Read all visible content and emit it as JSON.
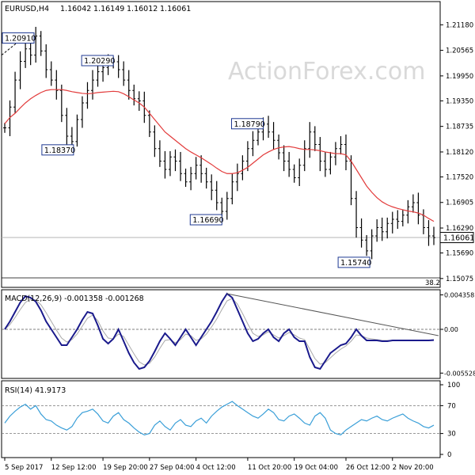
{
  "chart_data": {
    "type": "candlestick",
    "header": {
      "symbol_timeframe": "EURUSD,H4",
      "ohlc": [
        "1.16042",
        "1.16149",
        "1.16012",
        "1.16061"
      ]
    },
    "watermark": "ActionForex.com",
    "price_panel": {
      "ylim": [
        1.149,
        1.217
      ],
      "ticks": [
        "1.21180",
        "1.20565",
        "1.19950",
        "1.19350",
        "1.18735",
        "1.18120",
        "1.17520",
        "1.16905",
        "1.16290",
        "1.15690",
        "1.15075"
      ],
      "current_price": "1.16061",
      "current_price_value": 1.16061,
      "fib_label": "38.2",
      "annotations": [
        {
          "text": "1.20910",
          "value": 1.2091,
          "x_index": 6
        },
        {
          "text": "1.20290",
          "value": 1.2029,
          "x_index": 21
        },
        {
          "text": "1.18370",
          "value": 1.1837,
          "x_index": 13
        },
        {
          "text": "1.16690",
          "value": 1.1669,
          "x_index": 42
        },
        {
          "text": "1.18790",
          "value": 1.1879,
          "x_index": 50
        },
        {
          "text": "1.15740",
          "value": 1.1574,
          "x_index": 70
        }
      ],
      "close": [
        1.187,
        1.192,
        1.1985,
        1.203,
        1.206,
        1.2045,
        1.2091,
        1.2055,
        1.201,
        1.1985,
        1.196,
        1.19,
        1.185,
        1.1837,
        1.189,
        1.193,
        1.196,
        1.1985,
        1.2005,
        1.2015,
        1.2025,
        1.2029,
        1.201,
        1.1985,
        1.196,
        1.194,
        1.1935,
        1.19,
        1.186,
        1.182,
        1.179,
        1.177,
        1.18,
        1.179,
        1.176,
        1.174,
        1.176,
        1.178,
        1.176,
        1.174,
        1.172,
        1.169,
        1.1669,
        1.17,
        1.174,
        1.176,
        1.179,
        1.182,
        1.184,
        1.186,
        1.1879,
        1.186,
        1.184,
        1.181,
        1.179,
        1.177,
        1.175,
        1.178,
        1.182,
        1.186,
        1.183,
        1.179,
        1.177,
        1.18,
        1.182,
        1.183,
        1.179,
        1.17,
        1.163,
        1.16,
        1.1574,
        1.161,
        1.163,
        1.162,
        1.164,
        1.165,
        1.1645,
        1.166,
        1.168,
        1.169,
        1.166,
        1.163,
        1.161,
        1.1606
      ],
      "ma": [
        1.188,
        1.1895,
        1.1905,
        1.1918,
        1.193,
        1.194,
        1.1948,
        1.1955,
        1.196,
        1.1962,
        1.1962,
        1.1962,
        1.196,
        1.1957,
        1.1955,
        1.1953,
        1.1952,
        1.1953,
        1.1955,
        1.1956,
        1.1957,
        1.1958,
        1.1957,
        1.1952,
        1.1945,
        1.1937,
        1.193,
        1.192,
        1.1905,
        1.189,
        1.1875,
        1.186,
        1.185,
        1.184,
        1.183,
        1.182,
        1.1812,
        1.1805,
        1.1798,
        1.179,
        1.1782,
        1.1773,
        1.1765,
        1.176,
        1.176,
        1.1762,
        1.1768,
        1.1775,
        1.1785,
        1.1795,
        1.1805,
        1.1812,
        1.1818,
        1.1822,
        1.1824,
        1.1825,
        1.1823,
        1.182,
        1.1818,
        1.1818,
        1.1817,
        1.1815,
        1.1812,
        1.181,
        1.1808,
        1.1808,
        1.1805,
        1.179,
        1.177,
        1.175,
        1.173,
        1.1715,
        1.1702,
        1.1692,
        1.1685,
        1.168,
        1.1676,
        1.1673,
        1.167,
        1.1668,
        1.1665,
        1.166,
        1.1652,
        1.1645
      ]
    },
    "macd_panel": {
      "label": "MACD(12,26,9) -0.001358 -0.001268",
      "ylim": [
        -0.006,
        0.0048
      ],
      "ticks": [
        "0.004358",
        "0.00",
        "-0.005528"
      ],
      "macd": [
        0.0,
        0.001,
        0.0022,
        0.0034,
        0.0042,
        0.004,
        0.0035,
        0.0024,
        0.001,
        0.0,
        -0.001,
        -0.002,
        -0.002,
        -0.001,
        0.0,
        0.0012,
        0.0022,
        0.002,
        0.0005,
        -0.0012,
        -0.0018,
        -0.0012,
        0.0,
        -0.0015,
        -0.003,
        -0.0042,
        -0.005,
        -0.0048,
        -0.004,
        -0.0028,
        -0.0015,
        -0.0005,
        -0.0012,
        -0.002,
        -0.001,
        0.0,
        -0.001,
        -0.002,
        -0.001,
        0.0,
        0.001,
        0.0022,
        0.0035,
        0.0045,
        0.004,
        0.0025,
        0.001,
        -0.0005,
        -0.0015,
        -0.0012,
        -0.0005,
        0.0,
        -0.001,
        -0.0015,
        -0.0005,
        0.0,
        -0.001,
        -0.0015,
        -0.0015,
        -0.0035,
        -0.0048,
        -0.005,
        -0.004,
        -0.003,
        -0.0025,
        -0.002,
        -0.0018,
        -0.001,
        0.0,
        -0.0008,
        -0.0014,
        -0.0014,
        -0.0014,
        -0.0015,
        -0.0015,
        -0.0014,
        -0.0014,
        -0.0014,
        -0.0014,
        -0.0014,
        -0.0014,
        -0.0014,
        -0.0014,
        -0.00136
      ],
      "signal": [
        0.0,
        0.0006,
        0.0015,
        0.0025,
        0.0034,
        0.0038,
        0.0037,
        0.0031,
        0.0021,
        0.001,
        -0.0001,
        -0.0011,
        -0.0016,
        -0.0013,
        -0.0006,
        0.0004,
        0.0014,
        0.0018,
        0.0011,
        -0.0002,
        -0.0011,
        -0.0012,
        -0.0006,
        -0.0009,
        -0.002,
        -0.0031,
        -0.0041,
        -0.0045,
        -0.0043,
        -0.0035,
        -0.0024,
        -0.0014,
        -0.0013,
        -0.0017,
        -0.0013,
        -0.0006,
        -0.0008,
        -0.0014,
        -0.0012,
        -0.0006,
        0.0003,
        0.0013,
        0.0025,
        0.0036,
        0.0039,
        0.0032,
        0.002,
        0.0007,
        -0.0005,
        -0.0009,
        -0.0007,
        -0.0003,
        -0.0007,
        -0.0011,
        -0.0008,
        -0.0004,
        -0.0007,
        -0.0011,
        -0.0013,
        -0.0025,
        -0.0037,
        -0.0044,
        -0.0042,
        -0.0036,
        -0.003,
        -0.0025,
        -0.0021,
        -0.0015,
        -0.0007,
        -0.0008,
        -0.0011,
        -0.0012,
        -0.0013,
        -0.0014,
        -0.0014,
        -0.0014,
        -0.0014,
        -0.0014,
        -0.0014,
        -0.0014,
        -0.0014,
        -0.0014,
        -0.0014,
        -0.00127
      ],
      "trendline": [
        [
          43,
          0.0045
        ],
        [
          84,
          -0.0008
        ]
      ]
    },
    "rsi_panel": {
      "label": "RSI(14) 41.9173",
      "ylim": [
        0,
        100
      ],
      "ticks": [
        "100",
        "70",
        "30",
        "0"
      ],
      "levels": [
        70,
        30
      ],
      "values": [
        45,
        55,
        62,
        68,
        72,
        65,
        70,
        58,
        50,
        48,
        42,
        38,
        35,
        40,
        52,
        60,
        62,
        65,
        58,
        48,
        45,
        55,
        60,
        50,
        45,
        38,
        32,
        28,
        30,
        42,
        48,
        40,
        35,
        45,
        50,
        42,
        40,
        48,
        52,
        45,
        55,
        62,
        68,
        72,
        76,
        70,
        65,
        60,
        55,
        52,
        58,
        65,
        60,
        50,
        48,
        55,
        58,
        52,
        45,
        42,
        55,
        60,
        52,
        35,
        30,
        28,
        35,
        40,
        45,
        50,
        48,
        52,
        55,
        50,
        48,
        52,
        55,
        58,
        52,
        48,
        45,
        40,
        38,
        42
      ]
    },
    "x_axis": {
      "labels": [
        "5 Sep 2017",
        "12 Sep 12:00",
        "19 Sep 20:00",
        "27 Sep 04:00",
        "4 Oct 12:00",
        "11 Oct 20:00",
        "19 Oct 04:00",
        "26 Oct 12:00",
        "2 Nov 20:00"
      ],
      "label_index": [
        0,
        9,
        19,
        28,
        37,
        47,
        56,
        66,
        75
      ]
    },
    "colors": {
      "candle": "#000000",
      "ma": "#e23b3b",
      "macd": "#1a1a8c",
      "signal": "#a9a9a9",
      "rsi": "#3a9fd8",
      "trendline": "#555555",
      "annotation_border": "#1f3a93"
    }
  }
}
